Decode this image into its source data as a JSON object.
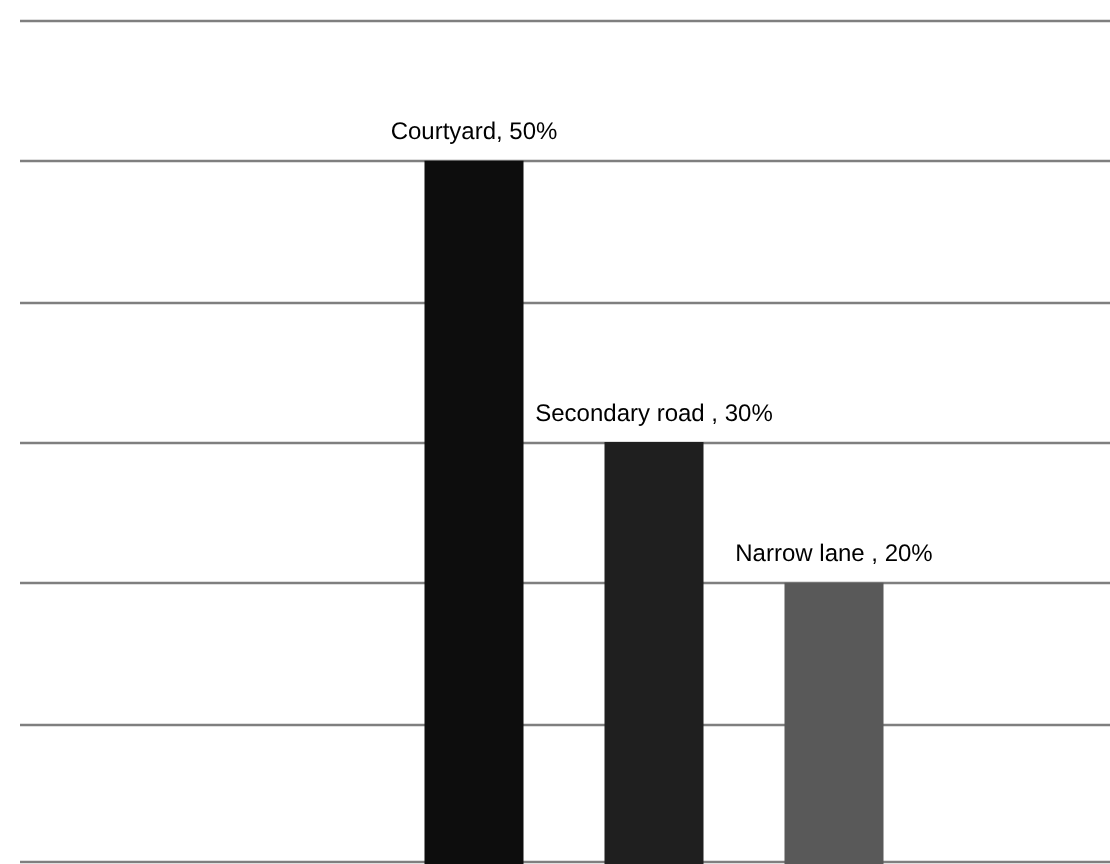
{
  "chart_data": {
    "type": "bar",
    "categories": [
      null,
      null,
      null
    ],
    "values": [
      50,
      30,
      20
    ],
    "colors": [
      "#0d0d0d",
      "#1f1f1f",
      "#595959"
    ],
    "value_labels": [
      "Courtyard, 50%",
      "Secondary road , 30%",
      "Narrow lane , 20%"
    ],
    "ylim": [
      0,
      60
    ],
    "yticks": [
      {
        "value": 0,
        "label": null
      },
      {
        "value": 10,
        "label": null
      },
      {
        "value": 20,
        "label": null
      },
      {
        "value": 30,
        "label": null
      },
      {
        "value": 40,
        "label": null
      },
      {
        "value": 50,
        "label": null
      },
      {
        "value": 60,
        "label": null
      }
    ],
    "grid": "y"
  }
}
